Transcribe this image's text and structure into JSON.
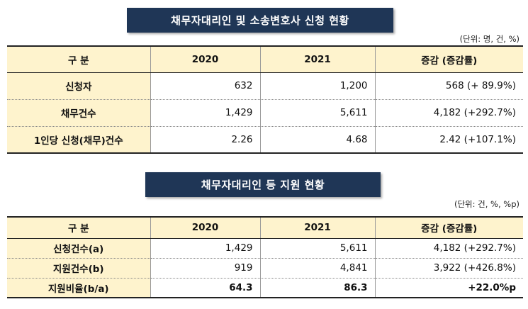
{
  "section1": {
    "title": "채무자대리인 및 소송변호사 신청 현황",
    "unit": "(단위: 명, 건, %)",
    "headers": [
      "구  분",
      "2020",
      "2021",
      "증감 (증감률)"
    ],
    "rows": [
      {
        "label": "신청자",
        "y2020": "632",
        "y2021": "1,200",
        "change": "568  (+ 89.9%)"
      },
      {
        "label": "채무건수",
        "y2020": "1,429",
        "y2021": "5,611",
        "change": "4,182  (+292.7%)"
      },
      {
        "label": "1인당 신청(채무)건수",
        "y2020": "2.26",
        "y2021": "4.68",
        "change": "2.42  (+107.1%)"
      }
    ]
  },
  "section2": {
    "title": "채무자대리인 등 지원 현황",
    "unit": "(단위: 건, %, %p)",
    "headers": [
      "구  분",
      "2020",
      "2021",
      "증감 (증감률)"
    ],
    "rows": [
      {
        "label": "신청건수(a)",
        "y2020": "1,429",
        "y2021": "5,611",
        "change": "4,182  (+292.7%)"
      },
      {
        "label": "지원건수(b)",
        "y2020": "919",
        "y2021": "4,841",
        "change": "3,922  (+426.8%)"
      },
      {
        "label": "지원비율(b/a)",
        "y2020": "64.3",
        "y2021": "86.3",
        "change": "+22.0%p"
      }
    ]
  },
  "colors": {
    "banner": "#1f3656",
    "header_fill": "#fef3cd"
  }
}
